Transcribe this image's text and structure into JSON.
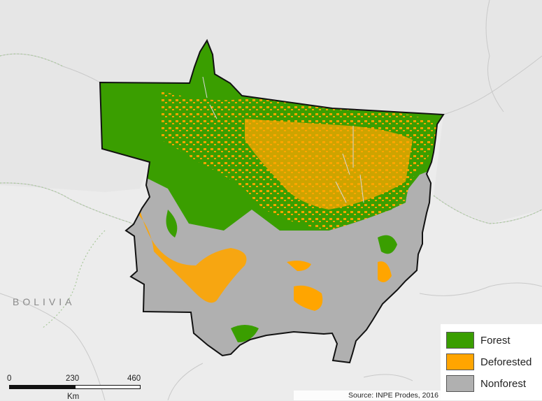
{
  "map": {
    "country_label": "BOLIVIA",
    "source": "Source: INPE Prodes, 2016"
  },
  "legend": {
    "items": [
      {
        "label": "Forest",
        "color": "#3a9e00"
      },
      {
        "label": "Deforested",
        "color": "#ffa500"
      },
      {
        "label": "Nonforest",
        "color": "#b0b0b0"
      }
    ]
  },
  "scale_bar": {
    "ticks": [
      "0",
      "230",
      "460"
    ],
    "unit": "Km"
  },
  "colors": {
    "background": "#ececec",
    "border_lines": "#c9c9c9",
    "boundary_dots": "#a8c89a",
    "state_outline": "#111111"
  }
}
